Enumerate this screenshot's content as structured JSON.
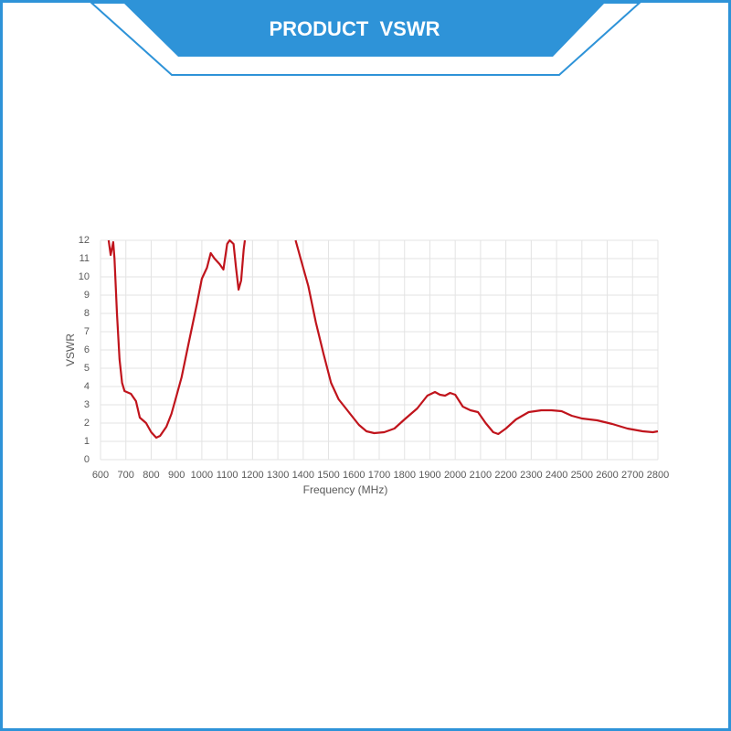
{
  "chart_data": {
    "type": "line",
    "title": "PRODUCT  VSWR",
    "x_label": "Frequency (MHz)",
    "y_label": "VSWR",
    "x": [
      632,
      640,
      650,
      655,
      665,
      675,
      685,
      695,
      720,
      740,
      755,
      780,
      800,
      820,
      835,
      860,
      880,
      900,
      920,
      950,
      980,
      1000,
      1020,
      1035,
      1050,
      1070,
      1085,
      1100,
      1110,
      1125,
      1135,
      1145,
      1155,
      1165,
      1170,
      1270,
      1370,
      1390,
      1420,
      1450,
      1480,
      1510,
      1540,
      1580,
      1620,
      1650,
      1680,
      1720,
      1760,
      1800,
      1850,
      1890,
      1920,
      1940,
      1960,
      1980,
      2000,
      2030,
      2060,
      2090,
      2120,
      2150,
      2170,
      2200,
      2240,
      2290,
      2340,
      2380,
      2420,
      2460,
      2500,
      2560,
      2620,
      2680,
      2740,
      2780,
      2800
    ],
    "values": [
      12,
      11.2,
      11.9,
      11,
      8,
      5.5,
      4.2,
      3.75,
      3.6,
      3.2,
      2.3,
      2.0,
      1.5,
      1.2,
      1.3,
      1.8,
      2.5,
      3.5,
      4.5,
      6.5,
      8.5,
      9.9,
      10.5,
      11.3,
      11,
      10.7,
      10.4,
      11.8,
      12,
      11.8,
      10.5,
      9.3,
      9.8,
      11.5,
      12,
      null,
      12,
      11,
      9.5,
      7.5,
      5.8,
      4.2,
      3.3,
      2.6,
      1.9,
      1.55,
      1.45,
      1.5,
      1.7,
      2.2,
      2.8,
      3.5,
      3.7,
      3.55,
      3.5,
      3.65,
      3.55,
      2.9,
      2.7,
      2.6,
      2.0,
      1.5,
      1.4,
      1.7,
      2.2,
      2.6,
      2.7,
      2.7,
      2.65,
      2.4,
      2.25,
      2.15,
      1.95,
      1.7,
      1.55,
      1.5,
      1.55
    ],
    "color": "#c0141c",
    "xlim": [
      600,
      2800
    ],
    "xticks": [
      600,
      700,
      800,
      900,
      1000,
      1100,
      1200,
      1300,
      1400,
      1500,
      1600,
      1700,
      1800,
      1900,
      2000,
      2100,
      2200,
      2300,
      2400,
      2500,
      2600,
      2700,
      2800
    ],
    "ylim": [
      0,
      12
    ],
    "yticks": [
      0,
      1,
      2,
      3,
      4,
      5,
      6,
      7,
      8,
      9,
      10,
      11,
      12
    ],
    "grid": true
  }
}
